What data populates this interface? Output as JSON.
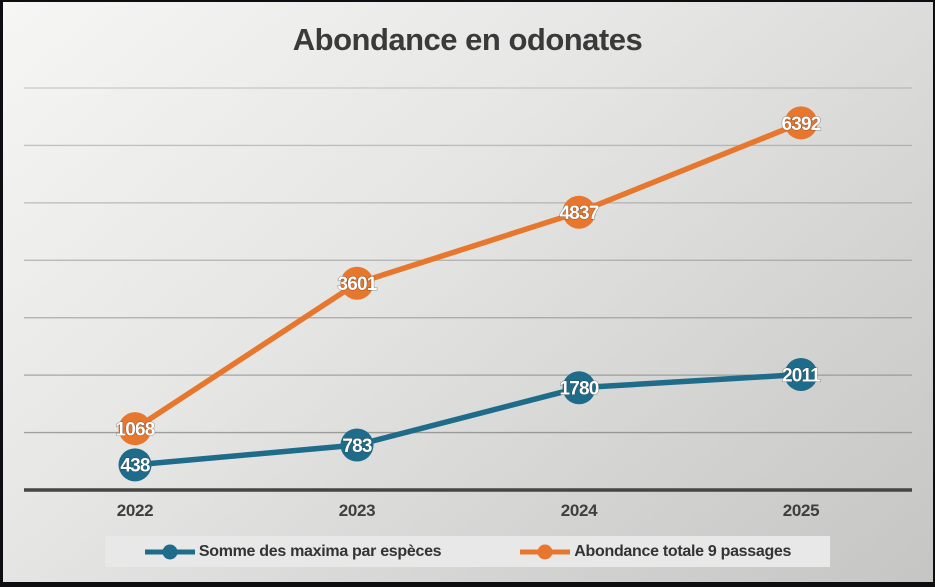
{
  "chart_data": {
    "type": "line",
    "title": "Abondance en odonates",
    "categories": [
      "2022",
      "2023",
      "2024",
      "2025"
    ],
    "series": [
      {
        "name": "Somme des maxima par espèces",
        "values": [
          438,
          783,
          1780,
          2011
        ],
        "color": "#1E6B8A"
      },
      {
        "name": "Abondance totale 9 passages",
        "values": [
          1068,
          3601,
          4837,
          6392
        ],
        "color": "#E8772E"
      }
    ],
    "xlabel": "",
    "ylabel": "",
    "ylim": [
      0,
      7000
    ],
    "grid_step": 1000,
    "grid": "on",
    "y_tick_labels_visible": false,
    "legend_position": "bottom",
    "data_labels": "on"
  },
  "colors": {
    "grid": "#6f6f6f",
    "axis": "#454545",
    "title_text": "#3a3a3a",
    "tick_text": "#3f3f3f",
    "legend_background": "#e8e8e8",
    "data_label_text": "#ffffff",
    "frame_border": "#0d0d12",
    "background_top": "#f6f6f5",
    "background_bottom": "#c5c5c4"
  }
}
